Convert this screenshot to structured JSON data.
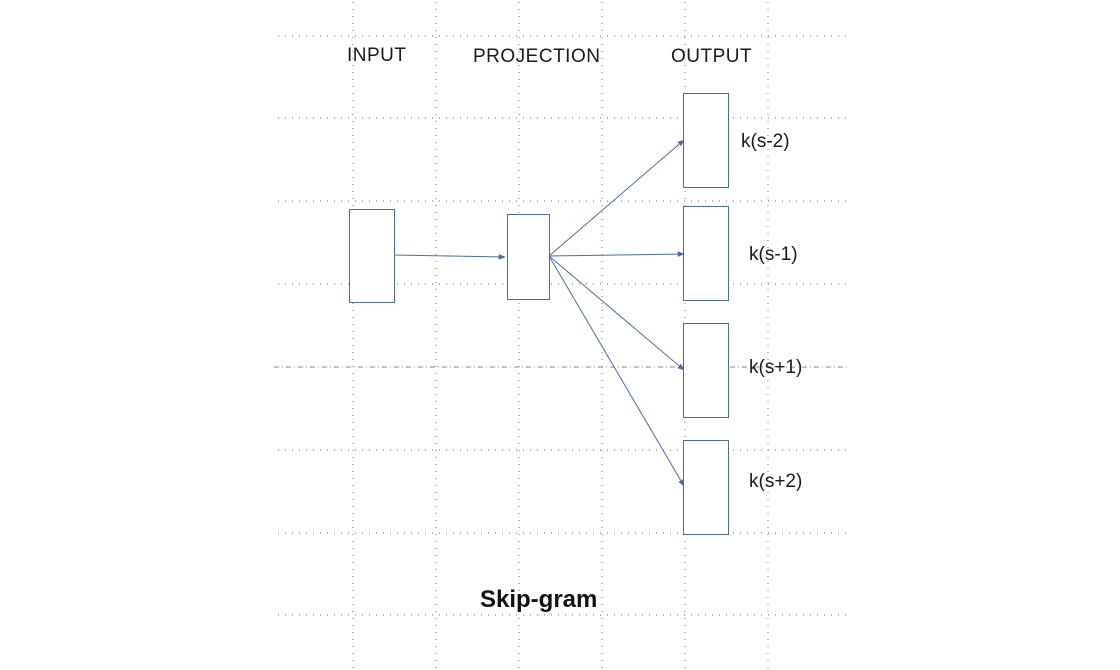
{
  "diagram": {
    "type": "neural-network-architecture",
    "columns": {
      "input": "INPUT",
      "projection": "PROJECTION",
      "output": "OUTPUT"
    },
    "outputs": [
      {
        "label": "k(s-2)"
      },
      {
        "label": "k(s-1)"
      },
      {
        "label": "k(s+1)"
      },
      {
        "label": "k(s+2)"
      }
    ],
    "edges": [
      {
        "from": "input",
        "to": "projection"
      },
      {
        "from": "projection",
        "to": "output-0"
      },
      {
        "from": "projection",
        "to": "output-1"
      },
      {
        "from": "projection",
        "to": "output-2"
      },
      {
        "from": "projection",
        "to": "output-3"
      }
    ],
    "caption": "Skip-gram",
    "colors": {
      "stroke": "#4a6da7",
      "grid": "#8a8a8a",
      "text": "#1a1a1a"
    }
  }
}
